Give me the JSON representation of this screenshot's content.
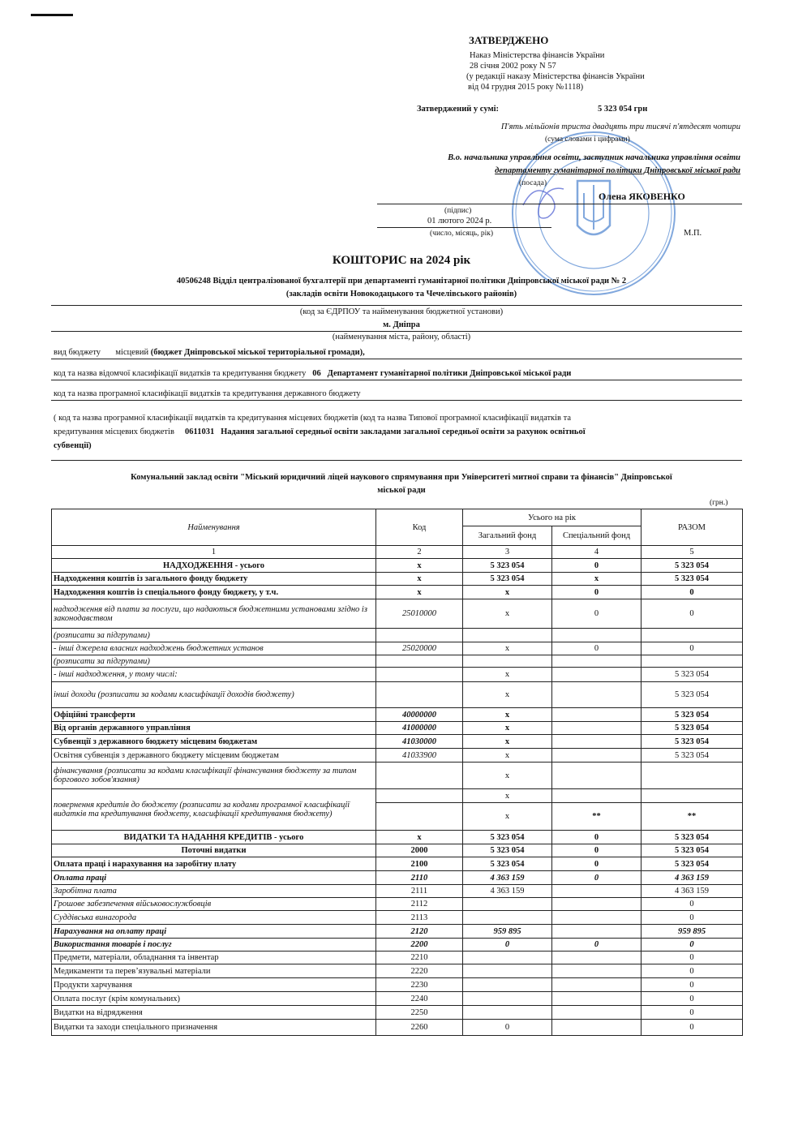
{
  "approval": {
    "title": "ЗАТВЕРДЖЕНО",
    "order_lines": [
      "Наказ Міністерства  фінансів України",
      "28 січня 2002 року  N 57",
      "(у редакції наказу  Міністерства фінансів  України",
      "від 04 грудня 2015 року №1118)"
    ],
    "sum_label": "Затверджений у сумі:",
    "sum_value": "5 323 054  грн",
    "sum_words": "П'ять мільйонів триста двадцять три тисячі п'ятдесят чотири",
    "sum_words_caption": "(сума словами і цифрами)",
    "position_line1": "В.о. начальника управління освіти, заступник начальника управління освіти",
    "position_line2": "департаменту гуманітарної політики  Дніпровської міської ради",
    "position_caption": "(посада)",
    "signer": "Олена ЯКОВЕНКО",
    "signature_caption": "(підпис)",
    "date": "01   лютого   2024 р.",
    "date_caption": "(число, місяць, рік)",
    "seal_caption": "М.П."
  },
  "stamp": {
    "ring_text": "ДЕПАРТАМЕНТ ГУМАНІТАРНОЇ ПОЛІТИКИ ДНІПРОВСЬКОЇ МІСЬКОЇ РАДИ",
    "code_text": "Ідентифікаційний код 40506248",
    "country": "УКРАЇНА",
    "color": "#2f6fc8"
  },
  "header": {
    "title": "КОШТОРИС  на  2024 рік",
    "institution_line1": "40506248 Відділ централізованої бухгалтерії при департаменті гуманітарної політики Дніпровської міської ради № 2",
    "institution_line2": "(закладів освіти Новокодацького та Чечелівського районів)",
    "institution_caption": "(код за ЄДРПОУ та найменування бюджетної установи)",
    "city": "м. Дніпра",
    "city_caption": "(найменування міста, району, області)",
    "budget_type_label": "вид бюджету",
    "budget_type_value": "місцевий",
    "budget_type_detail": "(бюджет Дніпровської міської територіальної громади),",
    "dept_label": "код та назва відомчої класифікації видатків та кредитування бюджету",
    "dept_code": "06",
    "dept_name": "Департамент гуманітарної політики Дніпровської міської ради",
    "state_program_label": "код та назва програмної класифікації видатків та кредитування державного бюджету",
    "local_program_line1": "( код та назва програмної класифікації видатків та кредитування  місцевих бюджетів (код та назва Типової програмної класифікації видатків та",
    "local_program_line2_label": "кредитування місцевих бюджетів",
    "local_program_code": "0611031",
    "local_program_name_line1": "Надання загальної середньої освіти закладами загальної середньої  освіти   за рахунок освітньої",
    "local_program_name_line2": "субвенції)",
    "school_line1": "Комунальний заклад освіти \"Міський юридичний ліцей наукового спрямування при Університеті митної справи та фінансів\" Дніпровської",
    "school_line2": "міської ради",
    "units": "(грн.)"
  },
  "table": {
    "col_name": "Найменування",
    "col_code": "Код",
    "col_year": "Усього на рік",
    "col_general": "Загальний фонд",
    "col_special": "Спеціальний фонд",
    "col_total": "РАЗОМ",
    "col_numbers": [
      "1",
      "2",
      "3",
      "4",
      "5"
    ],
    "rows": [
      {
        "name": "НАДХОДЖЕННЯ - усього",
        "code": "x",
        "general": "5 323 054",
        "special": "0",
        "total": "5 323 054",
        "emphasis": "bold center"
      },
      {
        "name": "Надходження коштів із загального фонду бюджету",
        "code": "x",
        "general": "5 323 054",
        "special": "x",
        "total": "5 323 054",
        "emphasis": "values-bold"
      },
      {
        "name": "Надходження коштів із спеціального фонду бюджету, у т.ч.",
        "code": "x",
        "general": "x",
        "special": "0",
        "total": "0",
        "emphasis": "values-bold"
      },
      {
        "name": "надходження від плати за послуги, що надаються бюджетними установами згідно із законодавством",
        "code": "25010000",
        "general": "x",
        "special": "0",
        "total": "0",
        "emphasis": "italic-name"
      },
      {
        "name": "(розписати за підгрупами)",
        "code": "",
        "general": "",
        "special": "",
        "total": "",
        "emphasis": "italic-name"
      },
      {
        "name": " - інші  джерела власних надходжень бюджетних установ",
        "code": "25020000",
        "general": "x",
        "special": "0",
        "total": "0",
        "emphasis": "italic-name"
      },
      {
        "name": "(розписати за підгрупами)",
        "code": "",
        "general": "",
        "special": "",
        "total": "",
        "emphasis": "italic-name"
      },
      {
        "name": " - інші надходження, у тому числі:",
        "code": "",
        "general": "x",
        "special": "",
        "total": "5 323 054",
        "emphasis": "italic-name"
      },
      {
        "name": "   інші доходи (розписати за кодами класифікації доходів бюджету)",
        "code": "",
        "general": "x",
        "special": "",
        "total": "5 323 054",
        "emphasis": "italic-name"
      },
      {
        "name": "Офіційні трансферти",
        "code": "40000000",
        "general": "x",
        "special": "",
        "total": "5 323 054",
        "emphasis": "values-bold"
      },
      {
        "name": "Від органів державного управління",
        "code": "41000000",
        "general": "x",
        "special": "",
        "total": "5 323 054",
        "emphasis": "values-bold"
      },
      {
        "name": "Субвенції з державного бюджету місцевим бюджетам",
        "code": "41030000",
        "general": "x",
        "special": "",
        "total": "5 323 054",
        "emphasis": "values-bold"
      },
      {
        "name": "Освітня субвенція з державного бюджету місцевим бюджетам",
        "code": "41033900",
        "general": "x",
        "special": "",
        "total": "5 323 054",
        "emphasis": ""
      },
      {
        "name": "   фінансування (розписати за кодами класифікації фінансування бюджету за типом боргового зобов'язання)",
        "code": "",
        "general": "x",
        "special": "",
        "total": "",
        "emphasis": "italic-name"
      },
      {
        "name": "   повернення кредитів до бюджету (розписати за кодами програмної класифікації видатків та кредитування бюджету, класифікації кредитування бюджету)",
        "code": "",
        "general": "x",
        "special": "",
        "total": "",
        "emphasis": "italic-name",
        "sub": {
          "code": "",
          "general": "x",
          "special": "**",
          "total": "**"
        }
      },
      {
        "name": "ВИДАТКИ ТА НАДАННЯ КРЕДИТІВ - усього",
        "code": "x",
        "general": "5 323 054",
        "special": "0",
        "total": "5 323 054",
        "emphasis": "bold center"
      },
      {
        "name": "Поточні видатки",
        "code": "2000",
        "general": "5 323 054",
        "special": "0",
        "total": "5 323 054",
        "emphasis": "bold center"
      },
      {
        "name": "Оплата праці і нарахування на заробітну плату",
        "code": "2100",
        "general": "5 323 054",
        "special": "0",
        "total": "5 323 054",
        "emphasis": "bold"
      },
      {
        "name": "Оплата праці",
        "code": "2110",
        "general": "4 363 159",
        "special": "0",
        "total": "4 363 159",
        "emphasis": "bolditalic"
      },
      {
        "name": "Заробітна плата",
        "code": "2111",
        "general": "4 363 159",
        "special": "",
        "total": "4 363 159",
        "emphasis": "italic-name"
      },
      {
        "name": "Грошове забезпечення військовослужбовців",
        "code": "2112",
        "general": "",
        "special": "",
        "total": "0",
        "emphasis": "italic-name"
      },
      {
        "name": "Суддівська винагорода",
        "code": "2113",
        "general": "",
        "special": "",
        "total": "0",
        "emphasis": "italic-name"
      },
      {
        "name": "Нарахування на оплату праці",
        "code": "2120",
        "general": "959 895",
        "special": "",
        "total": "959 895",
        "emphasis": "bolditalic"
      },
      {
        "name": "Використання товарів і послуг",
        "code": "2200",
        "general": "0",
        "special": "0",
        "total": "0",
        "emphasis": "bolditalic"
      },
      {
        "name": "Предмети, матеріали, обладнання та інвентар",
        "code": "2210",
        "general": "",
        "special": "",
        "total": "0",
        "emphasis": ""
      },
      {
        "name": "Медикаменти та перев’язувальні матеріали",
        "code": "2220",
        "general": "",
        "special": "",
        "total": "0",
        "emphasis": ""
      },
      {
        "name": "Продукти харчування",
        "code": "2230",
        "general": "",
        "special": "",
        "total": "0",
        "emphasis": ""
      },
      {
        "name": "Оплата послуг (крім комунальних)",
        "code": "2240",
        "general": "",
        "special": "",
        "total": "0",
        "emphasis": ""
      },
      {
        "name": "Видатки на відрядження",
        "code": "2250",
        "general": "",
        "special": "",
        "total": "0",
        "emphasis": ""
      },
      {
        "name": "Видатки та заходи спеціального призначення",
        "code": "2260",
        "general": "0",
        "special": "",
        "total": "0",
        "emphasis": ""
      }
    ]
  }
}
